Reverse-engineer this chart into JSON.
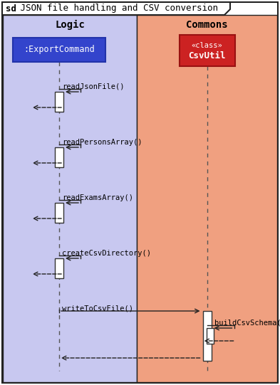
{
  "title_sd": "sd",
  "title_rest": " JSON file handling and CSV conversion",
  "background_color": "#ffffff",
  "frame_border_color": "#222222",
  "logic_bg": "#c8c8f0",
  "commons_bg": "#f0a080",
  "logic_label": "Logic",
  "commons_label": "Commons",
  "export_cmd_label": ":ExportCommand",
  "export_cmd_bg": "#3344cc",
  "export_cmd_fg": "#ffffff",
  "csvutil_line1": "«class»",
  "csvutil_line2": "CsvUtil",
  "csvutil_bg": "#cc2222",
  "csvutil_fg": "#ffffff",
  "lifeline_dash": [
    4,
    4
  ],
  "lifeline_color": "#555555",
  "act_fill": "#ffffff",
  "act_edge": "#333333",
  "arrow_color": "#222222",
  "self_calls": [
    {
      "label": "readJsonFile()"
    },
    {
      "label": "readPersonsArray()"
    },
    {
      "label": "readExamsArray()"
    },
    {
      "label": "createCsvDirectory()"
    }
  ],
  "write_label": "writeToCsvFile()",
  "build_label": "buildCsvSchema()"
}
